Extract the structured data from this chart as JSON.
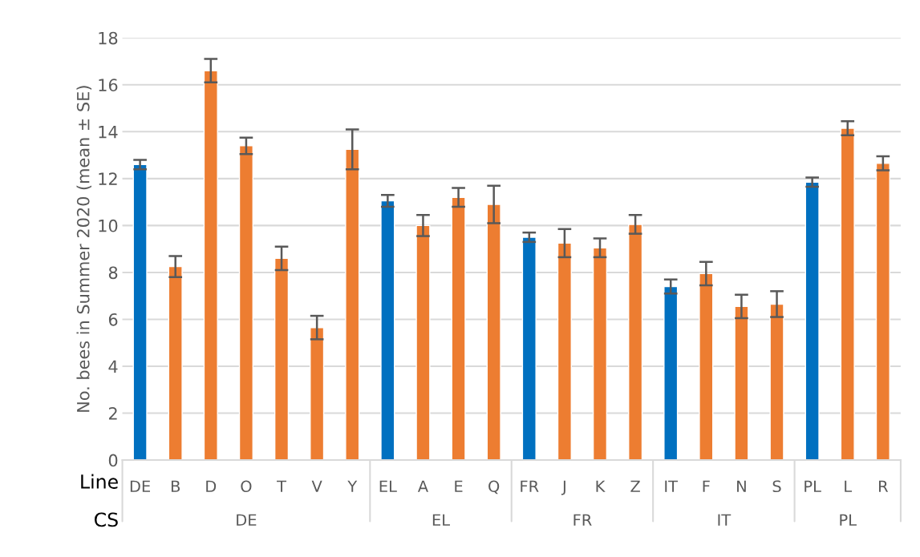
{
  "chart_data": {
    "type": "bar",
    "ylabel": "No. bees in Summer 2020 (mean ± SE)",
    "categories": [
      "DE",
      "B",
      "D",
      "O",
      "T",
      "V",
      "Y",
      "EL",
      "A",
      "E",
      "Q",
      "FR",
      "J",
      "K",
      "Z",
      "IT",
      "F",
      "N",
      "S",
      "PL",
      "L",
      "R"
    ],
    "values": [
      12.6,
      8.25,
      16.6,
      13.4,
      8.6,
      5.65,
      13.25,
      11.05,
      10.0,
      11.2,
      10.9,
      9.5,
      9.25,
      9.05,
      10.05,
      7.4,
      7.95,
      6.55,
      6.65,
      11.85,
      14.15,
      12.65
    ],
    "errors": [
      0.2,
      0.45,
      0.5,
      0.35,
      0.5,
      0.5,
      0.85,
      0.25,
      0.45,
      0.4,
      0.8,
      0.2,
      0.6,
      0.4,
      0.4,
      0.3,
      0.5,
      0.5,
      0.55,
      0.2,
      0.3,
      0.3
    ],
    "colors": [
      "#0070c0",
      "#ed7d31",
      "#ed7d31",
      "#ed7d31",
      "#ed7d31",
      "#ed7d31",
      "#ed7d31",
      "#0070c0",
      "#ed7d31",
      "#ed7d31",
      "#ed7d31",
      "#0070c0",
      "#ed7d31",
      "#ed7d31",
      "#ed7d31",
      "#0070c0",
      "#ed7d31",
      "#ed7d31",
      "#ed7d31",
      "#0070c0",
      "#ed7d31",
      "#ed7d31"
    ],
    "annotations": [
      "Line",
      "CS",
      "DE",
      "EL",
      "FR",
      "IT",
      "PL"
    ],
    "ylim": [
      0,
      18
    ],
    "yticks": [
      0,
      2,
      4,
      6,
      8,
      10,
      12,
      14,
      16,
      18
    ],
    "grid": "y"
  }
}
